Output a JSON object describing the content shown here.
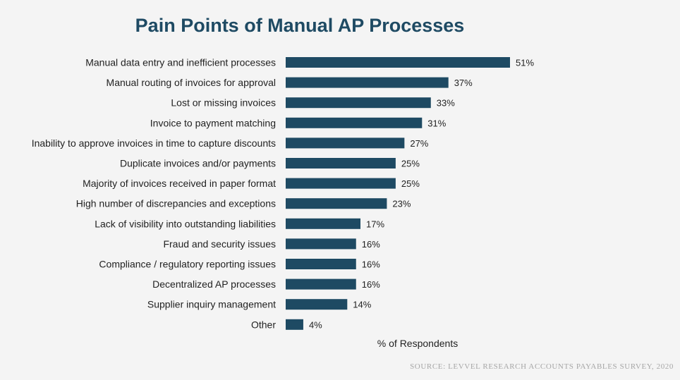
{
  "chart_data": {
    "type": "bar",
    "orientation": "horizontal",
    "title": "Pain Points of Manual AP Processes",
    "xlabel": "% of Respondents",
    "ylabel": "",
    "xlim": [
      0,
      51
    ],
    "grid": false,
    "legend": "none",
    "categories": [
      "Manual data entry and inefficient processes",
      "Manual routing of invoices for approval",
      "Lost or missing invoices",
      "Invoice to payment matching",
      "Inability to approve invoices in time to capture discounts",
      "Duplicate invoices and/or payments",
      "Majority of invoices received in paper format",
      "High number of discrepancies and exceptions",
      "Lack of visibility into outstanding liabilities",
      "Fraud and security issues",
      "Compliance / regulatory reporting issues",
      "Decentralized AP processes",
      "Supplier inquiry management",
      "Other"
    ],
    "values": [
      51,
      37,
      33,
      31,
      27,
      25,
      25,
      23,
      17,
      16,
      16,
      16,
      14,
      4
    ],
    "value_labels": [
      "51%",
      "37%",
      "33%",
      "31%",
      "27%",
      "25%",
      "25%",
      "23%",
      "17%",
      "16%",
      "16%",
      "16%",
      "14%",
      "4%"
    ],
    "bar_color": "#1e4a63",
    "source": "SOURCE: LEVVEL RESEARCH ACCOUNTS PAYABLES SURVEY, 2020"
  },
  "colors": {
    "background": "#f4f4f4",
    "title": "#1e4a63",
    "bar": "#1e4a63",
    "text": "#222222",
    "source": "#a6a6a6"
  }
}
